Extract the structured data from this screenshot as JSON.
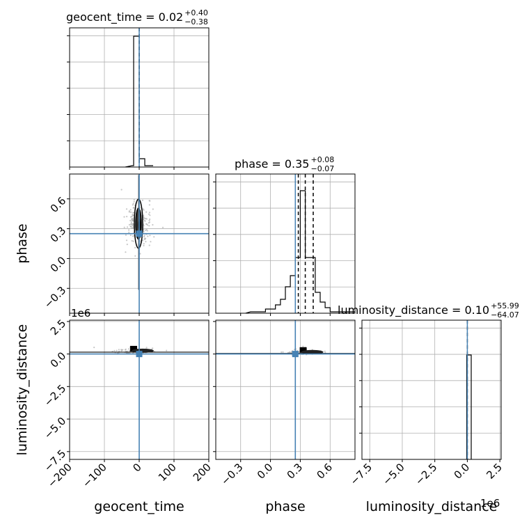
{
  "chart_data": {
    "type": "corner",
    "parameters": [
      "geocent_time",
      "phase",
      "luminosity_distance"
    ],
    "truth": {
      "geocent_time": 0,
      "phase": 0.25,
      "luminosity_distance": 0
    },
    "colors": {
      "truth": "#4682b4",
      "hist": "#000000",
      "grid": "#b0b0b0",
      "scatter": "#b0b0b0"
    },
    "titles": [
      {
        "param": "geocent_time",
        "text": "geocent_time = 0.02",
        "sup": "+0.40",
        "sub": "−0.38"
      },
      {
        "param": "phase",
        "text": "phase = 0.35",
        "sup": "+0.08",
        "sub": "−0.07"
      },
      {
        "param": "luminosity_distance",
        "text": "luminosity_distance = 0.10",
        "sup": "+55.99",
        "sub": "−64.07"
      }
    ],
    "offset_labels": {
      "luminosity_distance_y": "1e6",
      "luminosity_distance_x": "1e6"
    },
    "axes": {
      "geocent_time": {
        "range": [
          -200,
          200
        ],
        "ticks": [
          -200,
          -100,
          0,
          100,
          200
        ],
        "tick_labels": [
          "−200",
          "−100",
          "0",
          "100",
          "200"
        ],
        "label": "geocent_time"
      },
      "phase": {
        "range": [
          -0.55,
          0.85
        ],
        "ticks": [
          -0.3,
          0.0,
          0.3,
          0.6
        ],
        "tick_labels": [
          "−0.3",
          "0.0",
          "0.3",
          "0.6"
        ],
        "label": "phase"
      },
      "luminosity_distance": {
        "range": [
          -8.1,
          2.6
        ],
        "ticks": [
          -7.5,
          -5.0,
          -2.5,
          0.0,
          2.5
        ],
        "tick_labels": [
          "−7.5",
          "−5.0",
          "−2.5",
          "0.0",
          "2.5"
        ],
        "label": "luminosity_distance"
      }
    },
    "histograms": {
      "geocent_time": {
        "y_range": [
          0,
          1
        ],
        "step": [
          [
            -40,
            0
          ],
          [
            -20,
            0.01
          ],
          [
            -16,
            0.01
          ],
          [
            -16,
            0.94
          ],
          [
            0,
            0.94
          ],
          [
            0,
            0.06
          ],
          [
            16,
            0.06
          ],
          [
            16,
            0.01
          ],
          [
            40,
            0.01
          ]
        ],
        "quantiles": [
          0.02
        ]
      },
      "phase": {
        "y_range": [
          0,
          1
        ],
        "step": [
          [
            -0.25,
            0
          ],
          [
            -0.2,
            0.01
          ],
          [
            -0.05,
            0.01
          ],
          [
            -0.05,
            0.03
          ],
          [
            0.05,
            0.03
          ],
          [
            0.05,
            0.06
          ],
          [
            0.1,
            0.06
          ],
          [
            0.1,
            0.1
          ],
          [
            0.15,
            0.1
          ],
          [
            0.15,
            0.19
          ],
          [
            0.2,
            0.19
          ],
          [
            0.2,
            0.27
          ],
          [
            0.25,
            0.27
          ],
          [
            0.25,
            0.4
          ],
          [
            0.3,
            0.4
          ],
          [
            0.3,
            0.88
          ],
          [
            0.35,
            0.88
          ],
          [
            0.35,
            0.4
          ],
          [
            0.45,
            0.4
          ],
          [
            0.45,
            0.15
          ],
          [
            0.5,
            0.15
          ],
          [
            0.5,
            0.08
          ],
          [
            0.55,
            0.08
          ],
          [
            0.55,
            0.04
          ],
          [
            0.6,
            0.04
          ],
          [
            0.6,
            0.01
          ],
          [
            0.85,
            0.01
          ]
        ],
        "quantiles": [
          0.28,
          0.35,
          0.43
        ]
      },
      "luminosity_distance": {
        "y_range": [
          0,
          1.2
        ],
        "step": [
          [
            -0.05,
            0
          ],
          [
            -0.05,
            0.9
          ],
          [
            0.3,
            0.9
          ],
          [
            0.3,
            0
          ]
        ],
        "quantiles": [
          0.0
        ]
      }
    },
    "scatter_2d": {
      "phase_vs_geocent_time": {
        "center": [
          -2,
          0.35
        ],
        "blob": {
          "x_half": 8,
          "y_half": 0.13
        }
      },
      "luminosity_distance_vs_geocent_time": {
        "center": [
          -10,
          0.25
        ]
      },
      "luminosity_distance_vs_phase": {
        "center": [
          0.35,
          0.15
        ]
      }
    }
  }
}
